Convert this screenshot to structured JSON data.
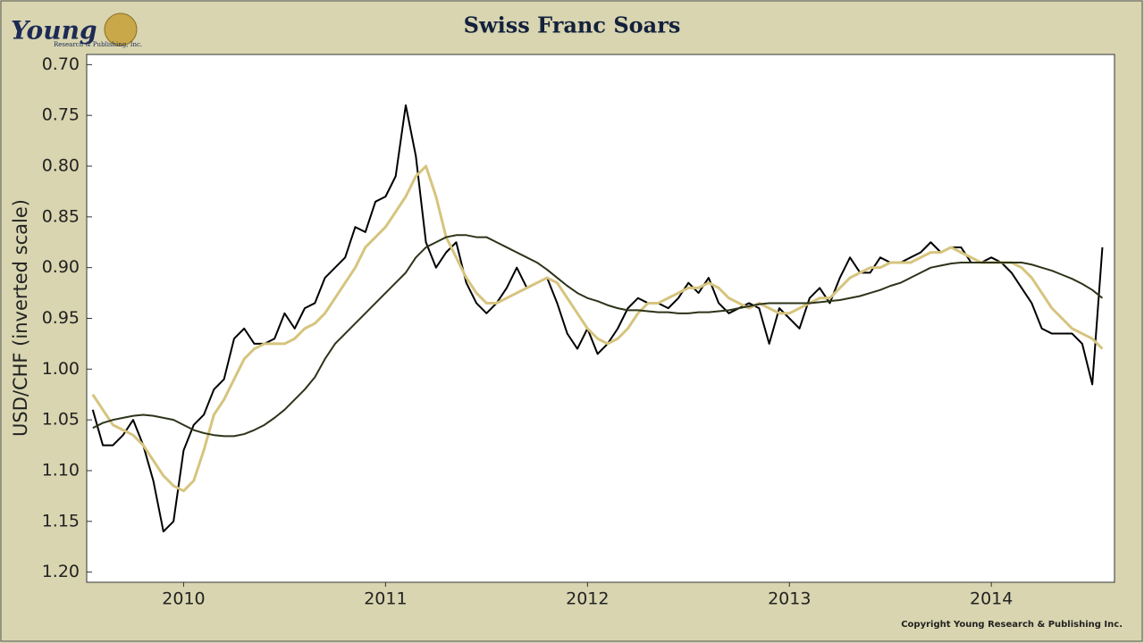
{
  "logo": {
    "name": "Young",
    "subname": "Research & Publishing, Inc."
  },
  "chart_data": {
    "type": "line",
    "title": "Swiss Franc Soars",
    "y_label": "USD/CHF (inverted scale)",
    "copyright": "Copyright Young Research & Publishing Inc.",
    "y_inverted": true,
    "xlim": [
      2010.02,
      2015.11
    ],
    "xticks": [
      {
        "value": 2010.5,
        "label": "2010"
      },
      {
        "value": 2011.5,
        "label": "2011"
      },
      {
        "value": 2012.5,
        "label": "2012"
      },
      {
        "value": 2013.5,
        "label": "2013"
      },
      {
        "value": 2014.5,
        "label": "2014"
      }
    ],
    "ylim": [
      0.69,
      1.21
    ],
    "yticks": [
      {
        "value": 0.7,
        "label": "0.70"
      },
      {
        "value": 0.75,
        "label": "0.75"
      },
      {
        "value": 0.8,
        "label": "0.80"
      },
      {
        "value": 0.85,
        "label": "0.85"
      },
      {
        "value": 0.9,
        "label": "0.90"
      },
      {
        "value": 0.95,
        "label": "0.95"
      },
      {
        "value": 1.0,
        "label": "1.00"
      },
      {
        "value": 1.05,
        "label": "1.05"
      },
      {
        "value": 1.1,
        "label": "1.10"
      },
      {
        "value": 1.15,
        "label": "1.15"
      },
      {
        "value": 1.2,
        "label": "1.20"
      }
    ],
    "x": [
      2010.05,
      2010.1,
      2010.15,
      2010.2,
      2010.25,
      2010.3,
      2010.35,
      2010.4,
      2010.45,
      2010.5,
      2010.55,
      2010.6,
      2010.65,
      2010.7,
      2010.75,
      2010.8,
      2010.85,
      2010.9,
      2010.95,
      2011.0,
      2011.05,
      2011.1,
      2011.15,
      2011.2,
      2011.25,
      2011.3,
      2011.35,
      2011.4,
      2011.45,
      2011.5,
      2011.55,
      2011.6,
      2011.65,
      2011.7,
      2011.75,
      2011.8,
      2011.85,
      2011.9,
      2011.95,
      2012.0,
      2012.05,
      2012.1,
      2012.15,
      2012.2,
      2012.25,
      2012.3,
      2012.35,
      2012.4,
      2012.45,
      2012.5,
      2012.55,
      2012.6,
      2012.65,
      2012.7,
      2012.75,
      2012.8,
      2012.85,
      2012.9,
      2012.95,
      2013.0,
      2013.05,
      2013.1,
      2013.15,
      2013.2,
      2013.25,
      2013.3,
      2013.35,
      2013.4,
      2013.45,
      2013.5,
      2013.55,
      2013.6,
      2013.65,
      2013.7,
      2013.75,
      2013.8,
      2013.85,
      2013.9,
      2013.95,
      2014.0,
      2014.05,
      2014.1,
      2014.15,
      2014.2,
      2014.25,
      2014.3,
      2014.35,
      2014.4,
      2014.45,
      2014.5,
      2014.55,
      2014.6,
      2014.65,
      2014.7,
      2014.75,
      2014.8,
      2014.85,
      2014.9,
      2014.95,
      2015.0,
      2015.05
    ],
    "series": [
      {
        "color": "#000000",
        "values": [
          1.04,
          1.075,
          1.075,
          1.065,
          1.05,
          1.075,
          1.11,
          1.16,
          1.15,
          1.08,
          1.055,
          1.045,
          1.02,
          1.01,
          0.97,
          0.96,
          0.975,
          0.975,
          0.97,
          0.945,
          0.96,
          0.94,
          0.935,
          0.91,
          0.9,
          0.89,
          0.86,
          0.865,
          0.835,
          0.83,
          0.81,
          0.74,
          0.79,
          0.875,
          0.9,
          0.885,
          0.875,
          0.915,
          0.935,
          0.945,
          0.935,
          0.92,
          0.9,
          0.92,
          0.915,
          0.91,
          0.935,
          0.965,
          0.98,
          0.96,
          0.985,
          0.975,
          0.96,
          0.94,
          0.93,
          0.935,
          0.935,
          0.94,
          0.93,
          0.915,
          0.925,
          0.91,
          0.935,
          0.945,
          0.94,
          0.935,
          0.94,
          0.975,
          0.94,
          0.95,
          0.96,
          0.93,
          0.92,
          0.935,
          0.91,
          0.89,
          0.905,
          0.905,
          0.89,
          0.895,
          0.895,
          0.89,
          0.885,
          0.875,
          0.885,
          0.88,
          0.88,
          0.895,
          0.895,
          0.89,
          0.895,
          0.905,
          0.92,
          0.935,
          0.96,
          0.965,
          0.965,
          0.965,
          0.975,
          1.015,
          0.88
        ]
      },
      {
        "color": "#d6c47e",
        "values": [
          1.025,
          1.04,
          1.055,
          1.06,
          1.065,
          1.075,
          1.09,
          1.105,
          1.115,
          1.12,
          1.11,
          1.08,
          1.045,
          1.03,
          1.01,
          0.99,
          0.98,
          0.975,
          0.975,
          0.975,
          0.97,
          0.96,
          0.955,
          0.945,
          0.93,
          0.915,
          0.9,
          0.88,
          0.87,
          0.86,
          0.845,
          0.83,
          0.81,
          0.8,
          0.83,
          0.87,
          0.89,
          0.91,
          0.925,
          0.935,
          0.935,
          0.93,
          0.925,
          0.92,
          0.915,
          0.91,
          0.915,
          0.93,
          0.945,
          0.96,
          0.97,
          0.975,
          0.97,
          0.96,
          0.945,
          0.935,
          0.935,
          0.93,
          0.925,
          0.92,
          0.92,
          0.915,
          0.92,
          0.93,
          0.935,
          0.94,
          0.935,
          0.94,
          0.945,
          0.945,
          0.94,
          0.935,
          0.93,
          0.93,
          0.92,
          0.91,
          0.905,
          0.9,
          0.9,
          0.895,
          0.895,
          0.895,
          0.89,
          0.885,
          0.885,
          0.88,
          0.885,
          0.89,
          0.895,
          0.895,
          0.895,
          0.895,
          0.9,
          0.91,
          0.925,
          0.94,
          0.95,
          0.96,
          0.965,
          0.97,
          0.98
        ]
      },
      {
        "color": "#2c3419",
        "values": [
          1.058,
          1.053,
          1.05,
          1.048,
          1.046,
          1.045,
          1.046,
          1.048,
          1.05,
          1.055,
          1.06,
          1.063,
          1.065,
          1.066,
          1.066,
          1.064,
          1.06,
          1.055,
          1.048,
          1.04,
          1.03,
          1.02,
          1.008,
          0.99,
          0.975,
          0.965,
          0.955,
          0.945,
          0.935,
          0.925,
          0.915,
          0.905,
          0.89,
          0.88,
          0.875,
          0.87,
          0.868,
          0.868,
          0.87,
          0.87,
          0.875,
          0.88,
          0.885,
          0.89,
          0.895,
          0.902,
          0.91,
          0.918,
          0.925,
          0.93,
          0.933,
          0.937,
          0.94,
          0.942,
          0.942,
          0.943,
          0.944,
          0.944,
          0.945,
          0.945,
          0.944,
          0.944,
          0.943,
          0.942,
          0.94,
          0.938,
          0.936,
          0.935,
          0.935,
          0.935,
          0.935,
          0.935,
          0.934,
          0.933,
          0.932,
          0.93,
          0.928,
          0.925,
          0.922,
          0.918,
          0.915,
          0.91,
          0.905,
          0.9,
          0.898,
          0.896,
          0.895,
          0.895,
          0.895,
          0.895,
          0.895,
          0.895,
          0.895,
          0.897,
          0.9,
          0.903,
          0.907,
          0.911,
          0.916,
          0.922,
          0.93
        ]
      }
    ]
  }
}
